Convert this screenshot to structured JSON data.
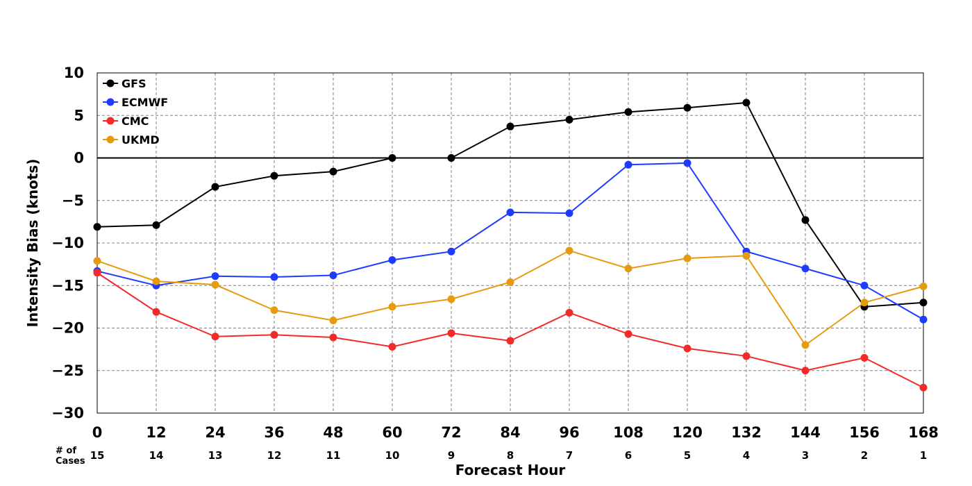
{
  "chart_data": {
    "type": "line",
    "xlabel": "Forecast Hour",
    "ylabel": "Intensity Bias (knots)",
    "x": [
      0,
      12,
      24,
      36,
      48,
      60,
      72,
      84,
      96,
      108,
      120,
      132,
      144,
      156,
      168
    ],
    "xlim": [
      0,
      168
    ],
    "ylim": [
      -30,
      10
    ],
    "yticks": [
      10,
      5,
      0,
      -5,
      -10,
      -15,
      -20,
      -25,
      -30
    ],
    "ytick_labels": [
      "10",
      "5",
      "0",
      "−5",
      "−10",
      "−15",
      "−20",
      "−25",
      "−30"
    ],
    "grid": true,
    "legend_position": "top-left",
    "zero_line": true,
    "cases_label": [
      "# of",
      "Cases"
    ],
    "cases": [
      15,
      14,
      13,
      12,
      11,
      10,
      9,
      8,
      7,
      6,
      5,
      4,
      3,
      2,
      1
    ],
    "series": [
      {
        "name": "GFS",
        "color": "#000000",
        "values": [
          -8.1,
          -7.9,
          -3.4,
          -2.1,
          -1.6,
          0.0,
          0.0,
          3.7,
          4.5,
          5.4,
          5.9,
          6.5,
          -7.3,
          -17.5,
          -17.0
        ]
      },
      {
        "name": "ECMWF",
        "color": "#1f3bff",
        "values": [
          -13.3,
          -15.0,
          -13.9,
          -14.0,
          -13.8,
          -12.0,
          -11.0,
          -6.4,
          -6.5,
          -0.8,
          -0.6,
          -11.0,
          -13.0,
          -15.0,
          -19.0
        ]
      },
      {
        "name": "CMC",
        "color": "#f22a2a",
        "values": [
          -13.5,
          -18.1,
          -21.0,
          -20.8,
          -21.1,
          -22.2,
          -20.6,
          -21.5,
          -18.2,
          -20.7,
          -22.4,
          -23.3,
          -25.0,
          -23.5,
          -27.0
        ]
      },
      {
        "name": "UKMD",
        "color": "#e69b0f",
        "values": [
          -12.1,
          -14.5,
          -14.9,
          -17.9,
          -19.1,
          -17.5,
          -16.6,
          -14.6,
          -10.9,
          -13.0,
          -11.8,
          -11.5,
          -22.0,
          -17.0,
          -15.1
        ]
      }
    ]
  }
}
